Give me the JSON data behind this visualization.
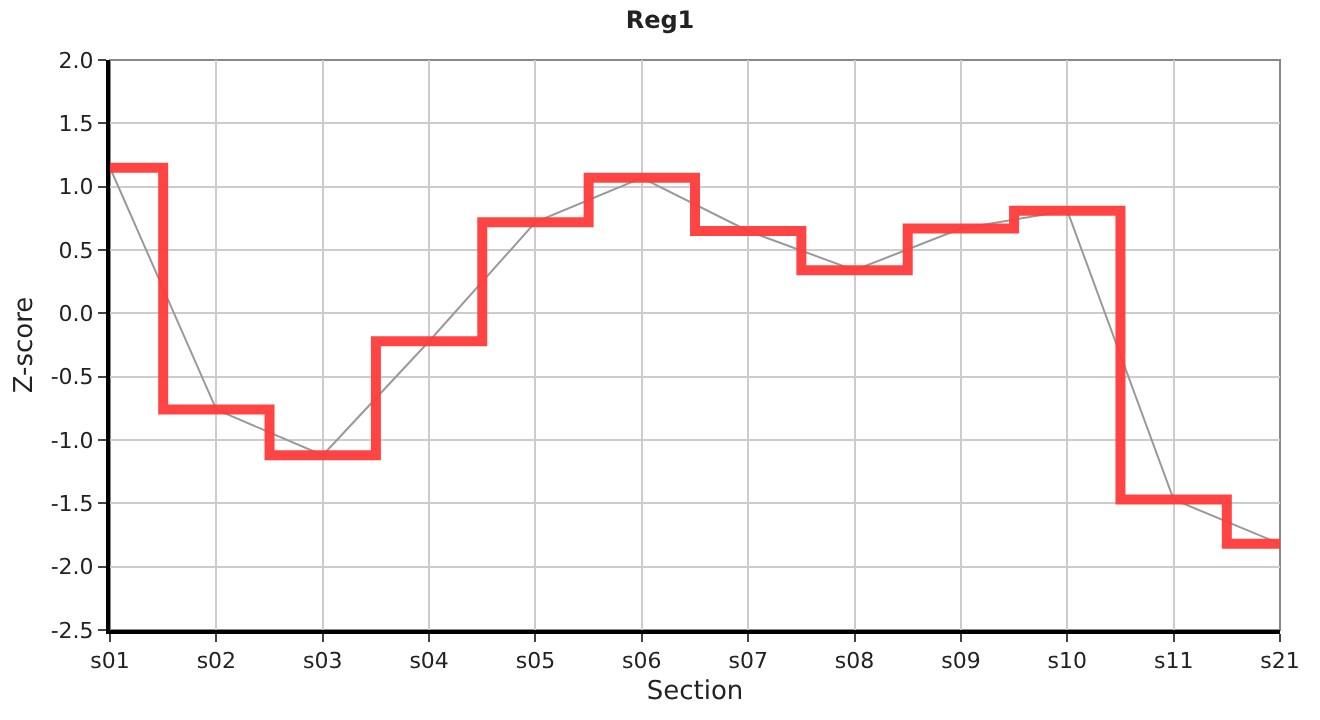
{
  "chart_data": {
    "type": "step",
    "title": "Reg1",
    "xlabel": "Section",
    "ylabel": "Z-score",
    "categories": [
      "s01",
      "s02",
      "s03",
      "s04",
      "s05",
      "s06",
      "s07",
      "s08",
      "s09",
      "s10",
      "s11",
      "s21"
    ],
    "series": [
      {
        "type": "line",
        "color": "#999999",
        "values": [
          1.15,
          -0.76,
          -1.12,
          -0.22,
          0.72,
          1.07,
          0.65,
          0.34,
          0.67,
          0.81,
          -1.47,
          -1.82
        ]
      },
      {
        "color": "#ff3b3b",
        "values": [
          1.15,
          -0.76,
          -1.12,
          -0.22,
          0.72,
          1.07,
          0.65,
          0.34,
          0.67,
          0.81,
          -1.47,
          -1.82
        ]
      }
    ],
    "ylim": [
      -2.5,
      2.0
    ],
    "yticks": [
      {
        "value": -2.5,
        "label": "-2.5"
      },
      {
        "value": -2.0,
        "label": "-2.0"
      },
      {
        "value": -1.5,
        "label": "-1.5"
      },
      {
        "value": -1.0,
        "label": "-1.0"
      },
      {
        "value": -0.5,
        "label": "-0.5"
      },
      {
        "value": 0,
        "label": "0.0"
      },
      {
        "value": 0.5,
        "label": "0.5"
      },
      {
        "value": 1.0,
        "label": "1.0"
      },
      {
        "value": 1.5,
        "label": "1.5"
      },
      {
        "value": 2.0,
        "label": "2.0"
      }
    ],
    "grid": true
  }
}
